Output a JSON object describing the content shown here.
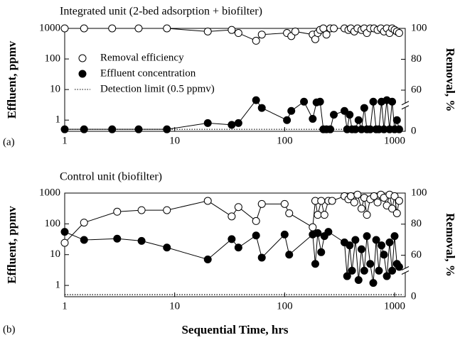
{
  "chart_data": [
    {
      "type": "line",
      "panel_label": "(a)",
      "title": "Integrated unit (2-bed adsorption + biofilter)",
      "ylabel": "Effluent, ppmv",
      "y2label": "Removal, %",
      "xscale": "log",
      "yscale": "log",
      "y2_break": true,
      "legend": "upper left",
      "xlim": [
        1,
        1250
      ],
      "xticks": [
        1,
        10,
        100,
        1000
      ],
      "ylim": [
        0.43,
        1000
      ],
      "yticks": [
        1,
        10,
        100,
        1000
      ],
      "y2lim": [
        0,
        100
      ],
      "y2ticks": [
        0,
        60,
        80,
        100
      ],
      "series": [
        {
          "name": "Removal efficiency",
          "axis": "y2",
          "marker": "open",
          "line_style": "solid",
          "color": "#000000",
          "x": [
            1,
            1.5,
            2.7,
            4.7,
            8.5,
            20,
            33,
            38,
            55,
            62,
            105,
            115,
            125,
            180,
            190,
            200,
            210,
            225,
            240,
            260,
            280,
            350,
            380,
            400,
            430,
            460,
            500,
            530,
            560,
            600,
            650,
            700,
            750,
            800,
            850,
            900,
            950,
            1000,
            1050,
            1100
          ],
          "values": [
            100,
            100,
            100,
            100,
            100,
            98,
            99,
            97,
            92,
            96,
            97,
            95,
            98,
            96,
            93,
            97,
            99,
            100,
            96,
            100,
            100,
            100,
            99,
            100,
            98,
            100,
            99,
            100,
            97,
            100,
            100,
            99,
            100,
            98,
            100,
            97,
            100,
            99,
            98,
            97
          ]
        },
        {
          "name": "Effluent concentration",
          "axis": "y",
          "marker": "filled",
          "line_style": "solid",
          "color": "#000000",
          "x": [
            1,
            1.5,
            2.7,
            4.7,
            8.5,
            20,
            33,
            38,
            55,
            62,
            105,
            115,
            150,
            180,
            195,
            210,
            225,
            240,
            260,
            280,
            350,
            370,
            390,
            410,
            440,
            470,
            500,
            530,
            560,
            600,
            640,
            680,
            720,
            760,
            800,
            850,
            900,
            950,
            1000,
            1050,
            1100
          ],
          "values": [
            0.5,
            0.5,
            0.5,
            0.5,
            0.5,
            0.8,
            0.7,
            0.8,
            4.5,
            2.5,
            1,
            2,
            4,
            1.1,
            3.8,
            4,
            0.5,
            0.5,
            0.5,
            1.5,
            2,
            0.5,
            1.5,
            0.5,
            0.5,
            1,
            0.5,
            2.5,
            0.5,
            0.5,
            4,
            0.5,
            0.5,
            4,
            0.5,
            4.5,
            0.5,
            4,
            0.5,
            1,
            0.5
          ]
        },
        {
          "name": "Detection limit (0.5 ppmv)",
          "axis": "y",
          "marker": "none",
          "line_style": "dotted",
          "color": "#000000",
          "x": [
            1,
            1200
          ],
          "values": [
            0.5,
            0.5
          ]
        }
      ]
    },
    {
      "type": "line",
      "panel_label": "(b)",
      "title": "Control unit (biofilter)",
      "xlabel": "Sequential Time, hrs",
      "ylabel": "Effluent, ppmv",
      "y2label": "Removal, %",
      "xscale": "log",
      "yscale": "log",
      "y2_break": true,
      "xlim": [
        1,
        1250
      ],
      "xticks": [
        1,
        10,
        100,
        1000
      ],
      "ylim": [
        0.43,
        1000
      ],
      "yticks": [
        1,
        10,
        100,
        1000
      ],
      "y2lim": [
        0,
        100
      ],
      "y2ticks": [
        0,
        60,
        80,
        100
      ],
      "series": [
        {
          "axis": "y2",
          "marker": "open",
          "line_style": "solid",
          "color": "#000000",
          "x": [
            1,
            1.5,
            3,
            5,
            8.5,
            20,
            33,
            38,
            55,
            62,
            100,
            110,
            180,
            190,
            200,
            215,
            230,
            250,
            270,
            350,
            380,
            400,
            430,
            460,
            500,
            530,
            560,
            600,
            650,
            700,
            750,
            800,
            850,
            900,
            950,
            1000,
            1050,
            1100
          ],
          "values": [
            68,
            81,
            88,
            89,
            89,
            95,
            85,
            91,
            82,
            93,
            93,
            87,
            78,
            95,
            86,
            95,
            86,
            95,
            95,
            98,
            96,
            98,
            94,
            99,
            90,
            97,
            86,
            96,
            98,
            94,
            99,
            97,
            92,
            99,
            90,
            98,
            87,
            95
          ]
        },
        {
          "axis": "y",
          "marker": "filled",
          "line_style": "solid",
          "color": "#000000",
          "x": [
            1,
            1.5,
            3,
            5,
            8.5,
            20,
            33,
            38,
            55,
            62,
            100,
            110,
            180,
            190,
            200,
            215,
            230,
            250,
            350,
            370,
            390,
            410,
            440,
            470,
            500,
            530,
            560,
            600,
            640,
            680,
            720,
            760,
            800,
            850,
            900,
            950,
            1000,
            1050,
            1100
          ],
          "values": [
            55,
            30,
            33,
            28,
            17,
            7,
            32,
            17,
            42,
            8,
            45,
            10,
            45,
            5,
            50,
            12,
            40,
            55,
            25,
            2,
            20,
            3,
            30,
            1.5,
            15,
            3,
            40,
            5,
            1.2,
            30,
            3,
            20,
            10,
            2,
            25,
            3,
            40,
            5,
            4
          ]
        },
        {
          "axis": "y",
          "marker": "none",
          "line_style": "dotted",
          "color": "#000000",
          "x": [
            1,
            1200
          ],
          "values": [
            0.5,
            0.5
          ]
        }
      ]
    }
  ]
}
